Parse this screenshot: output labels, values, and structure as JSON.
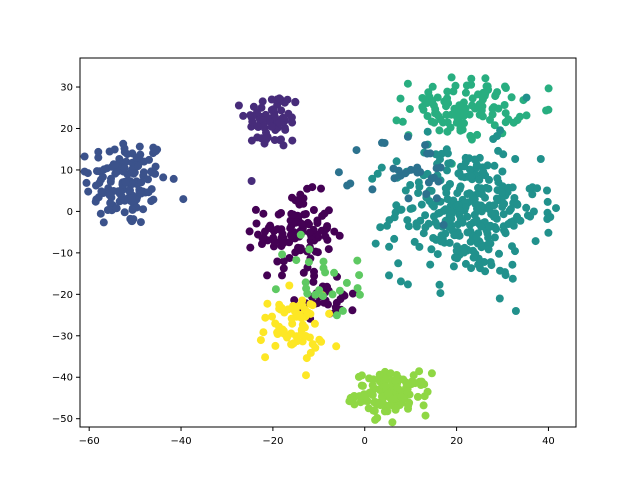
{
  "chart_data": {
    "type": "scatter",
    "title": "",
    "xlabel": "",
    "ylabel": "",
    "xlim": [
      -62,
      46
    ],
    "ylim": [
      -52,
      37
    ],
    "grid": false,
    "legend": "none",
    "x_ticks": [
      -60,
      -40,
      -20,
      0,
      20,
      40
    ],
    "y_ticks": [
      -50,
      -40,
      -30,
      -20,
      -10,
      0,
      10,
      20,
      30
    ],
    "point_colors": {
      "c0": "#440154",
      "c1": "#472c7a",
      "c2": "#3b528b",
      "c3": "#2c728e",
      "c4": "#21918c",
      "c5": "#28ae80",
      "c6": "#5ec962",
      "c7": "#8fd744",
      "c8": "#fde725"
    },
    "clusters": [
      {
        "color": "c2",
        "cx": -52,
        "cy": 7,
        "sx": 4.5,
        "sy": 5.5,
        "n": 130
      },
      {
        "color": "c1",
        "cx": -20,
        "cy": 22,
        "sx": 3.0,
        "sy": 3.5,
        "n": 70
      },
      {
        "color": "c0",
        "cx": -15,
        "cy": -5,
        "sx": 4.0,
        "sy": 4.5,
        "n": 110
      },
      {
        "color": "c0",
        "cx": -8,
        "cy": -20,
        "sx": 3.5,
        "sy": 3.0,
        "n": 35
      },
      {
        "color": "c8",
        "cx": -16,
        "cy": -28,
        "sx": 3.5,
        "sy": 4.0,
        "n": 65
      },
      {
        "color": "c7",
        "cx": 6,
        "cy": -44,
        "sx": 4.0,
        "sy": 2.5,
        "n": 130
      },
      {
        "color": "c5",
        "cx": 22,
        "cy": 25,
        "sx": 6.0,
        "sy": 3.5,
        "n": 110
      },
      {
        "color": "c4",
        "cx": 22,
        "cy": 0,
        "sx": 8.0,
        "sy": 8.0,
        "n": 320
      },
      {
        "color": "c3",
        "cx": 10,
        "cy": 8,
        "sx": 5.0,
        "sy": 6.0,
        "n": 30
      },
      {
        "color": "c6",
        "cx": -8,
        "cy": -16,
        "sx": 5.0,
        "sy": 5.0,
        "n": 25
      }
    ]
  }
}
